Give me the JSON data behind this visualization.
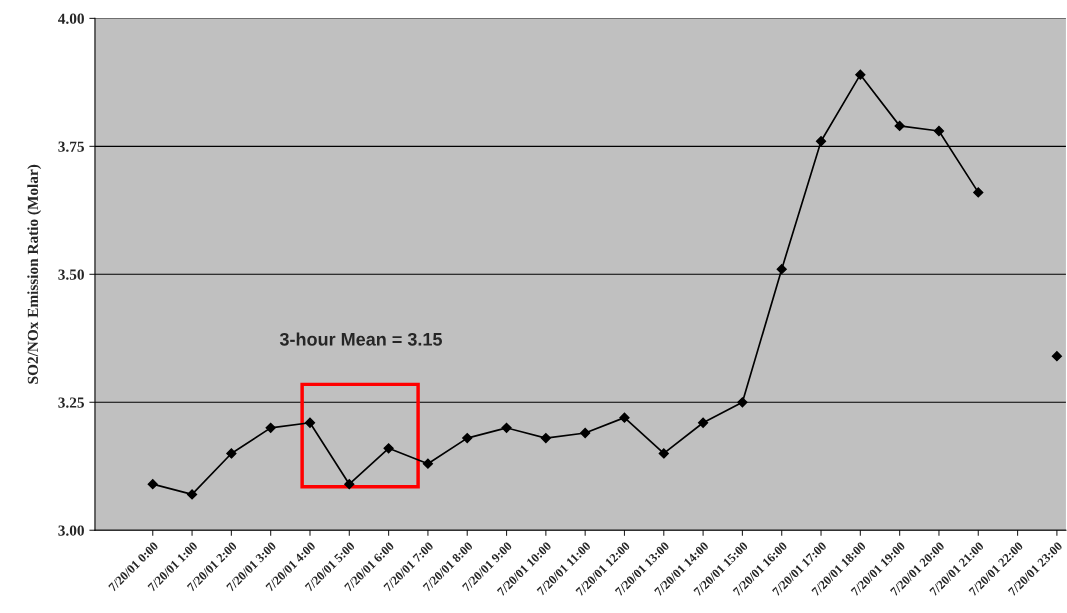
{
  "chart_data": {
    "type": "line",
    "ylabel": "SO2/NOx Emission Ratio (Molar)",
    "categories": [
      "7/20/01 0:00",
      "7/20/01 1:00",
      "7/20/01 2:00",
      "7/20/01 3:00",
      "7/20/01 4:00",
      "7/20/01 5:00",
      "7/20/01 6:00",
      "7/20/01 7:00",
      "7/20/01 8:00",
      "7/20/01 9:00",
      "7/20/01 10:00",
      "7/20/01 11:00",
      "7/20/01 12:00",
      "7/20/01 13:00",
      "7/20/01 14:00",
      "7/20/01 15:00",
      "7/20/01 16:00",
      "7/20/01 17:00",
      "7/20/01 18:00",
      "7/20/01 19:00",
      "7/20/01 20:00",
      "7/20/01 21:00",
      "7/20/01 22:00",
      "7/20/01 23:00"
    ],
    "series": [
      {
        "color": "#000000",
        "values": [
          3.09,
          3.07,
          3.15,
          3.2,
          3.21,
          3.09,
          3.16,
          3.13,
          3.18,
          3.2,
          3.18,
          3.19,
          3.22,
          3.15,
          3.21,
          3.25,
          3.51,
          3.76,
          3.89,
          3.79,
          3.78,
          3.66,
          null,
          3.34
        ]
      }
    ],
    "ylim": [
      3.0,
      4.0
    ],
    "yticks": [
      {
        "value": 3.0,
        "label": "3.00"
      },
      {
        "value": 3.25,
        "label": "3.25"
      },
      {
        "value": 3.5,
        "label": "3.50"
      },
      {
        "value": 3.75,
        "label": "3.75"
      },
      {
        "value": 4.0,
        "label": "4.00"
      }
    ],
    "grid": "y",
    "legend": false,
    "marker": "diamond",
    "line_style": "solid",
    "annotations": [
      "3-hour Mean = 3.15"
    ]
  }
}
